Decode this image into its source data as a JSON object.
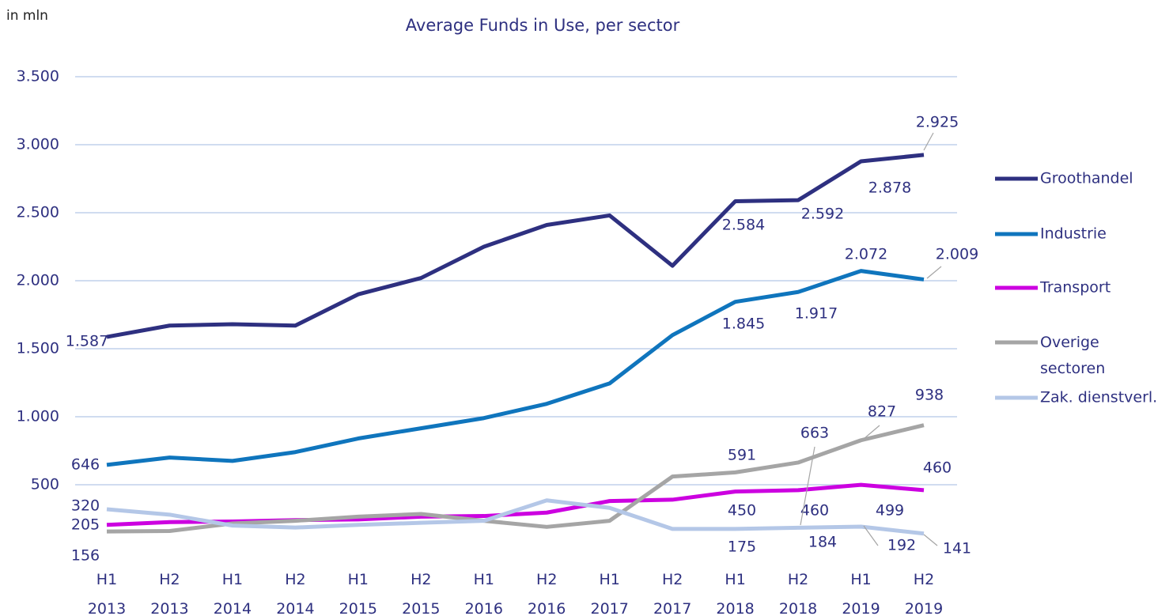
{
  "chart_data": {
    "type": "line",
    "title": "Average Funds in Use, per sector",
    "y_unit": "in mln",
    "categories": [
      "H1 2013",
      "H2 2013",
      "H1 2014",
      "H2 2014",
      "H1 2015",
      "H2 2015",
      "H1 2016",
      "H2 2016",
      "H1 2017",
      "H2 2017",
      "H1 2018",
      "H2 2018",
      "H1 2019",
      "H2 2019"
    ],
    "ylim": [
      0,
      3500
    ],
    "yticks": [
      {
        "value": 500,
        "label": "500"
      },
      {
        "value": 1000,
        "label": "1.000"
      },
      {
        "value": 1500,
        "label": "1.500"
      },
      {
        "value": 2000,
        "label": "2.000"
      },
      {
        "value": 2500,
        "label": "2.500"
      },
      {
        "value": 3000,
        "label": "3.000"
      },
      {
        "value": 3500,
        "label": "3.500"
      }
    ],
    "grid": true,
    "legend": "right",
    "series": [
      {
        "name": "Groothandel",
        "color": "#2e3080",
        "values": [
          1587,
          1670,
          1680,
          1670,
          1900,
          2020,
          2250,
          2410,
          2480,
          2110,
          2584,
          2592,
          2878,
          2925
        ],
        "value_labels": [
          "1.587",
          null,
          null,
          null,
          null,
          null,
          null,
          null,
          null,
          null,
          "2.584",
          "2.592",
          "2.878",
          "2.925"
        ]
      },
      {
        "name": "Industrie",
        "color": "#0f75bd",
        "values": [
          646,
          700,
          675,
          740,
          840,
          915,
          990,
          1095,
          1245,
          1600,
          1845,
          1917,
          2072,
          2009
        ],
        "value_labels": [
          "646",
          null,
          null,
          null,
          null,
          null,
          null,
          null,
          null,
          null,
          "1.845",
          "1.917",
          "2.072",
          "2.009"
        ]
      },
      {
        "name": "Transport",
        "color": "#cc00e0",
        "values": [
          205,
          225,
          230,
          240,
          245,
          265,
          270,
          295,
          380,
          390,
          450,
          460,
          499,
          460
        ],
        "value_labels": [
          "205",
          null,
          null,
          null,
          null,
          null,
          null,
          null,
          null,
          null,
          "450",
          "460",
          "499",
          "460"
        ]
      },
      {
        "name": "Overige sectoren",
        "color": "#a5a5a5",
        "values": [
          156,
          160,
          215,
          235,
          265,
          285,
          235,
          190,
          235,
          560,
          591,
          663,
          827,
          938
        ],
        "value_labels": [
          "156",
          null,
          null,
          null,
          null,
          null,
          null,
          null,
          null,
          null,
          "591",
          "663",
          "827",
          "938"
        ]
      },
      {
        "name": "Zak. dienstverl.",
        "color": "#b4c7e7",
        "values": [
          320,
          280,
          200,
          185,
          205,
          220,
          235,
          385,
          330,
          175,
          175,
          184,
          192,
          141
        ],
        "value_labels": [
          "320",
          null,
          null,
          null,
          null,
          null,
          null,
          null,
          null,
          null,
          "175",
          "184",
          "192",
          "141"
        ]
      }
    ]
  }
}
